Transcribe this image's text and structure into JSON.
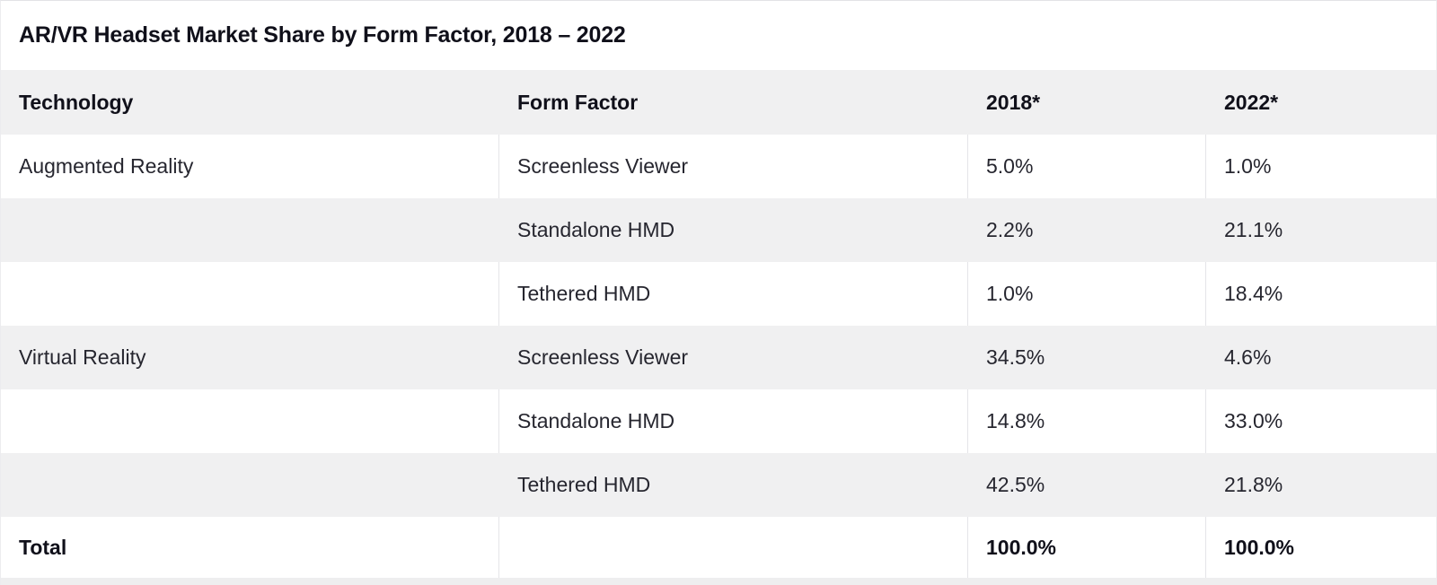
{
  "title": "AR/VR Headset Market Share by Form Factor, 2018 – 2022",
  "table": {
    "columns": [
      "Technology",
      "Form Factor",
      "2018*",
      "2022*"
    ],
    "rows": [
      {
        "technology": "Augmented Reality",
        "form_factor": "Screenless Viewer",
        "y2018": "5.0%",
        "y2022": "1.0%"
      },
      {
        "technology": "",
        "form_factor": "Standalone HMD",
        "y2018": "2.2%",
        "y2022": "21.1%"
      },
      {
        "technology": "",
        "form_factor": "Tethered HMD",
        "y2018": "1.0%",
        "y2022": "18.4%"
      },
      {
        "technology": "Virtual Reality",
        "form_factor": "Screenless Viewer",
        "y2018": "34.5%",
        "y2022": "4.6%"
      },
      {
        "technology": "",
        "form_factor": "Standalone HMD",
        "y2018": "14.8%",
        "y2022": "33.0%"
      },
      {
        "technology": "",
        "form_factor": "Tethered HMD",
        "y2018": "42.5%",
        "y2022": "21.8%"
      }
    ],
    "total": {
      "label": "Total",
      "form_factor": "",
      "y2018": "100.0%",
      "y2022": "100.0%"
    }
  },
  "chart_data": {
    "type": "table",
    "title": "AR/VR Headset Market Share by Form Factor, 2018 – 2022",
    "columns": [
      "Technology",
      "Form Factor",
      "2018*",
      "2022*"
    ],
    "rows": [
      [
        "Augmented Reality",
        "Screenless Viewer",
        "5.0%",
        "1.0%"
      ],
      [
        "",
        "Standalone HMD",
        "2.2%",
        "21.1%"
      ],
      [
        "",
        "Tethered HMD",
        "1.0%",
        "18.4%"
      ],
      [
        "Virtual Reality",
        "Screenless Viewer",
        "34.5%",
        "4.6%"
      ],
      [
        "",
        "Standalone HMD",
        "14.8%",
        "33.0%"
      ],
      [
        "",
        "Tethered HMD",
        "42.5%",
        "21.8%"
      ],
      [
        "Total",
        "",
        "100.0%",
        "100.0%"
      ]
    ],
    "series": [
      {
        "name": "2018",
        "values": [
          5.0,
          2.2,
          1.0,
          34.5,
          14.8,
          42.5
        ],
        "total": 100.0
      },
      {
        "name": "2022",
        "values": [
          1.0,
          21.1,
          18.4,
          4.6,
          33.0,
          21.8
        ],
        "total": 100.0
      }
    ],
    "categories": [
      "Augmented Reality / Screenless Viewer",
      "Augmented Reality / Standalone HMD",
      "Augmented Reality / Tethered HMD",
      "Virtual Reality / Screenless Viewer",
      "Virtual Reality / Standalone HMD",
      "Virtual Reality / Tethered HMD"
    ],
    "unit": "%"
  },
  "colors": {
    "row_stripe": "#f0f0f1",
    "header_bg": "#f0f0f1",
    "divider": "#e5e5e8",
    "heading_text": "#10101a",
    "body_text": "#26262f",
    "background": "#ffffff"
  }
}
